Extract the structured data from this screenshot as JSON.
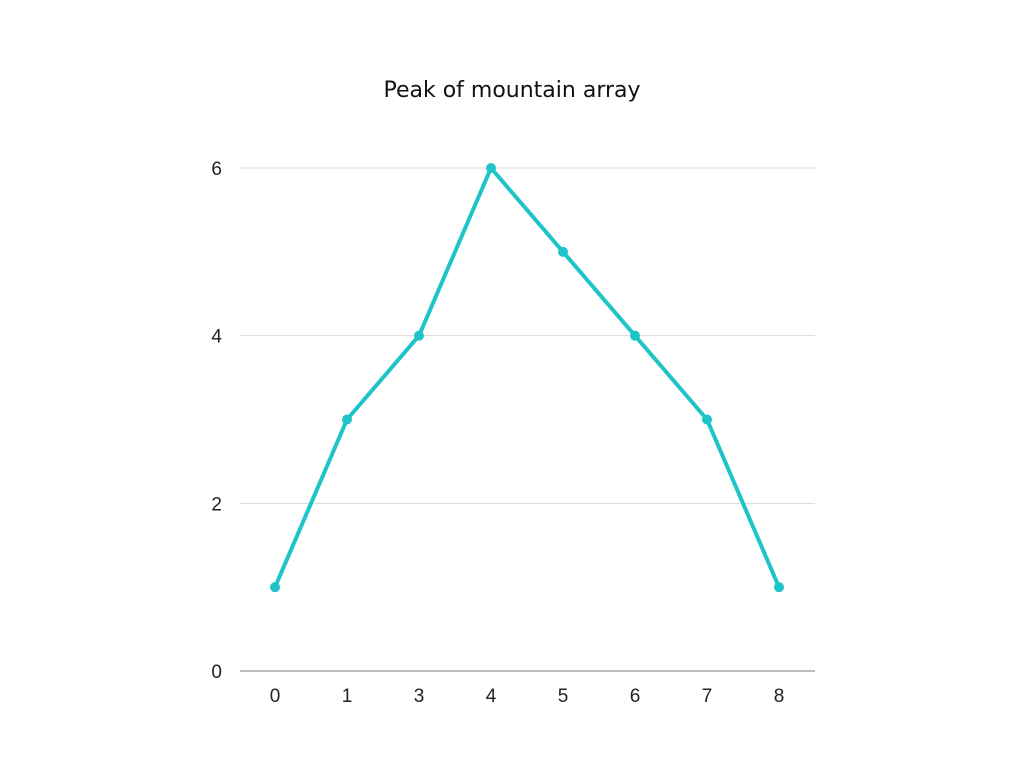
{
  "chart_data": {
    "type": "line",
    "title": "Peak of mountain array",
    "xlabel": "",
    "ylabel": "",
    "categories": [
      "0",
      "1",
      "3",
      "4",
      "5",
      "6",
      "7",
      "8"
    ],
    "series": [
      {
        "values": [
          1,
          3,
          4,
          6,
          5,
          4,
          3,
          1
        ]
      }
    ],
    "ylim": [
      0,
      6
    ],
    "yticks": [
      0,
      2,
      4,
      6
    ],
    "grid": true,
    "legend": "none",
    "colors": {
      "line": "#1fc4c9",
      "grid": "#d9d9d9",
      "axis": "#999999"
    }
  }
}
